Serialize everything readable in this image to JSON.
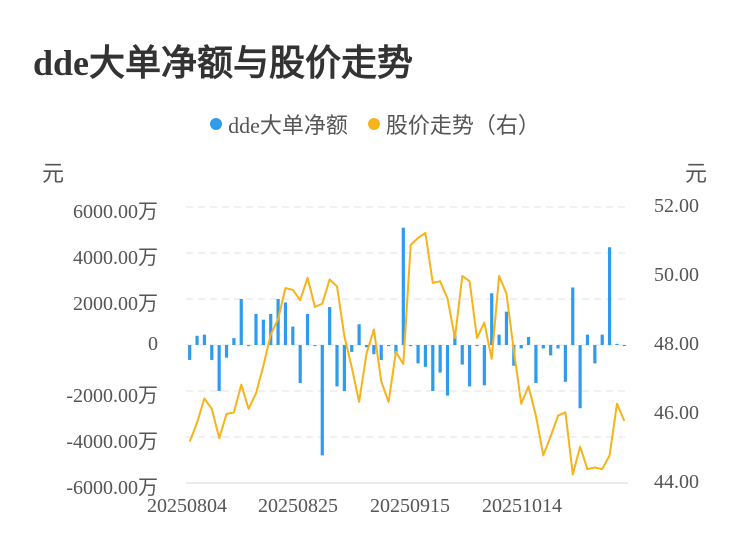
{
  "title": "dde大单净额与股价走势",
  "legend": [
    {
      "label": "dde大单净额",
      "color": "#2f9bed"
    },
    {
      "label": "股价走势（右）",
      "color": "#f7b21c"
    }
  ],
  "left_unit": "元",
  "right_unit": "元",
  "left_ticks": [
    "6000.00万",
    "4000.00万",
    "2000.00万",
    "0",
    "-2000.00万",
    "-4000.00万",
    "-6000.00万"
  ],
  "right_ticks": [
    "52.00",
    "50.00",
    "48.00",
    "46.00",
    "44.00"
  ],
  "x_ticks": [
    "20250804",
    "20250825",
    "20250915",
    "20251014"
  ],
  "chart_data": {
    "type": "bar+line",
    "title": "dde大单净额与股价走势",
    "xlabel": "",
    "ylabel_left": "元",
    "ylabel_right": "元",
    "ylim_left": [
      -6000,
      6000
    ],
    "ylim_right": [
      44,
      52
    ],
    "grid": true,
    "legend_position": "top",
    "x_tick_labels": [
      "20250804",
      "20250825",
      "20250915",
      "20251014"
    ],
    "series": [
      {
        "name": "dde大单净额",
        "type": "bar",
        "axis": "left",
        "unit": "万元",
        "color": "#2f9bed",
        "values": [
          -650,
          400,
          450,
          -650,
          -2000,
          -550,
          300,
          2000,
          -50,
          1350,
          1100,
          1350,
          2000,
          1850,
          800,
          -1650,
          1350,
          -50,
          -4800,
          1650,
          -1800,
          -2000,
          -300,
          900,
          -100,
          -400,
          -650,
          -50,
          -400,
          5100,
          -50,
          -800,
          -950,
          -2000,
          -1200,
          -2200,
          450,
          -850,
          -1800,
          -50,
          -1750,
          2250,
          450,
          1450,
          -900,
          -150,
          350,
          -1650,
          -150,
          -450,
          -150,
          -1600,
          2500,
          -2750,
          450,
          -800,
          450,
          4250,
          50,
          0
        ]
      },
      {
        "name": "股价走势（右）",
        "type": "line",
        "axis": "right",
        "unit": "元",
        "color": "#f7b21c",
        "values": [
          45.2,
          45.75,
          46.45,
          46.15,
          45.3,
          46.0,
          46.05,
          46.85,
          46.15,
          46.6,
          47.4,
          48.3,
          48.75,
          49.65,
          49.6,
          49.3,
          49.95,
          49.1,
          49.2,
          49.9,
          49.7,
          48.25,
          47.35,
          46.35,
          47.75,
          48.45,
          46.95,
          46.35,
          47.8,
          47.45,
          50.9,
          51.1,
          51.25,
          49.8,
          49.85,
          49.35,
          48.2,
          50.0,
          49.85,
          48.2,
          48.65,
          47.6,
          50.0,
          49.5,
          47.85,
          46.3,
          46.8,
          45.95,
          44.8,
          45.35,
          45.95,
          46.05,
          44.25,
          45.05,
          44.4,
          44.45,
          44.4,
          44.8,
          46.3,
          45.8
        ]
      }
    ]
  }
}
